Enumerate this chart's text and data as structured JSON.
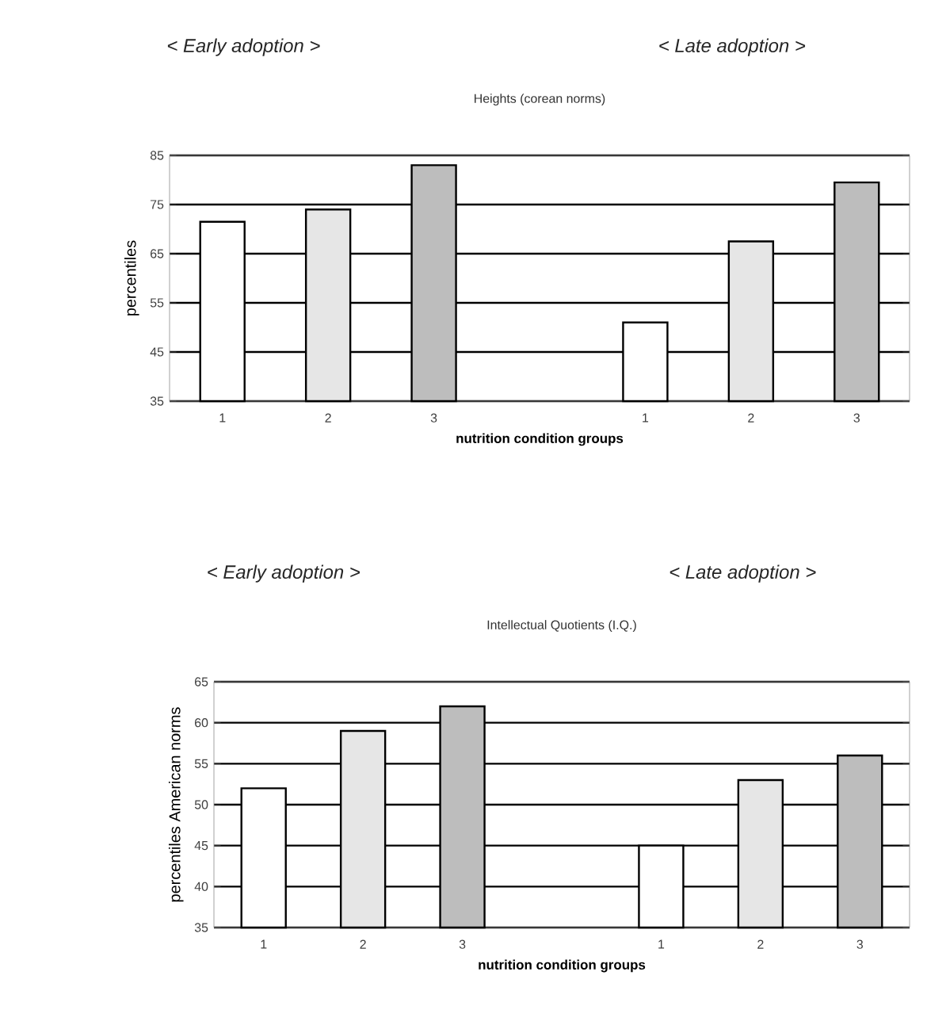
{
  "chart_data": [
    {
      "type": "bar",
      "title": "Heights (corean norms)",
      "xlabel": "nutrition condition groups",
      "ylabel": "percentiles",
      "categories": [
        "1",
        "2",
        "3",
        null,
        "1",
        "2",
        "3"
      ],
      "values": [
        71.5,
        74,
        83,
        null,
        51,
        67.5,
        79.5
      ],
      "colors": [
        "#ffffff",
        "#e6e6e6",
        "#bdbdbd",
        null,
        "#ffffff",
        "#e6e6e6",
        "#bdbdbd"
      ],
      "ylim": [
        35,
        85
      ],
      "yticks": [
        35,
        45,
        55,
        65,
        75,
        85
      ],
      "grid": "y",
      "annotations": [
        "< Early adoption >",
        "< Late adoption >"
      ]
    },
    {
      "type": "bar",
      "title": "Intellectual Quotients (I.Q.)",
      "xlabel": "nutrition condition groups",
      "ylabel": "percentiles American norms",
      "categories": [
        "1",
        "2",
        "3",
        null,
        "1",
        "2",
        "3"
      ],
      "values": [
        52,
        59,
        62,
        null,
        45,
        53,
        56
      ],
      "colors": [
        "#ffffff",
        "#e6e6e6",
        "#bdbdbd",
        null,
        "#ffffff",
        "#e6e6e6",
        "#bdbdbd"
      ],
      "ylim": [
        35,
        65
      ],
      "yticks": [
        35,
        40,
        45,
        50,
        55,
        60,
        65
      ],
      "grid": "y",
      "annotations": [
        "< Early adoption >",
        "< Late adoption >"
      ]
    }
  ]
}
